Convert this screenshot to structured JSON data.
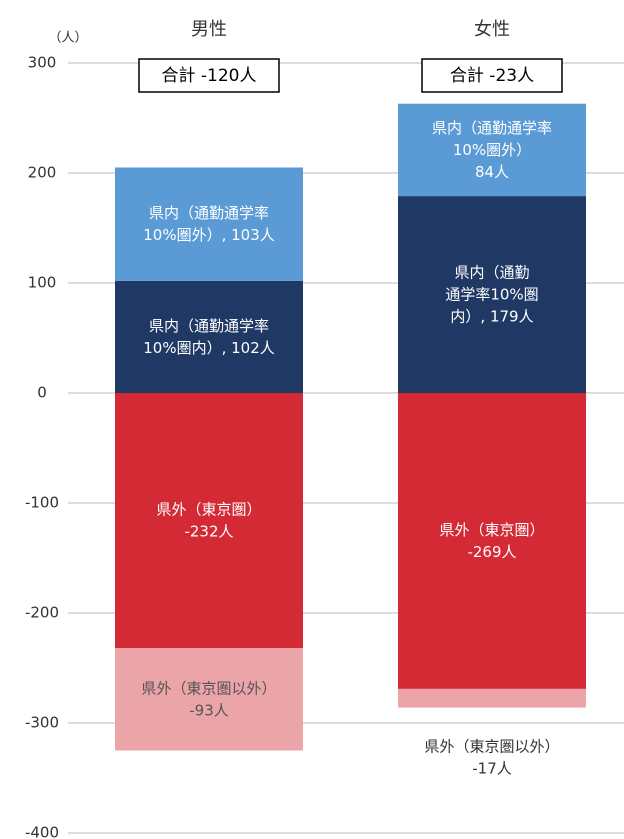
{
  "chart_data": {
    "type": "stacked_bar",
    "y_unit": "（人）",
    "categories": [
      "男性",
      "女性"
    ],
    "annotations": [
      "合計 -120人",
      "合計 -23人"
    ],
    "series": [
      {
        "name": "県内（通勤通学率10%圏内）",
        "color": "#1f3864",
        "values": [
          102,
          179
        ],
        "value_labels": [
          [
            "県内（通勤通学率",
            "10%圏内）, 102人"
          ],
          [
            "県内（通勤",
            "通学率10%圏",
            "内）, 179人"
          ]
        ]
      },
      {
        "name": "県内（通勤通学率10%圏外）",
        "color": "#5b9bd5",
        "values": [
          103,
          84
        ],
        "value_labels": [
          [
            "県内（通勤通学率",
            "10%圏外）, 103人"
          ],
          [
            "県内（通勤通学率",
            "10%圏外）",
            "84人"
          ]
        ]
      },
      {
        "name": "県外（東京圏）",
        "color": "#d42a35",
        "values": [
          -232,
          -269
        ],
        "value_labels": [
          [
            "県外（東京圏）",
            "-232人"
          ],
          [
            "県外（東京圏）",
            "-269人"
          ]
        ]
      },
      {
        "name": "県外（東京圏以外）",
        "color": "#eba5a8",
        "values": [
          -93,
          -17
        ],
        "value_labels": [
          [
            "県外（東京圏以外）",
            "-93人"
          ],
          [
            "県外（東京圏以外）",
            "-17人"
          ]
        ]
      }
    ],
    "ylim": [
      -400,
      300
    ],
    "yticks": [
      -400,
      -300,
      -200,
      -100,
      0,
      100,
      200,
      300
    ],
    "grid": true
  }
}
